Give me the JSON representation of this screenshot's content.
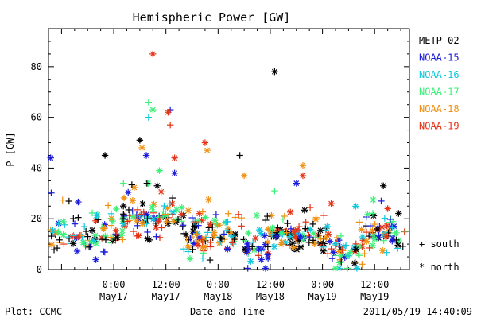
{
  "chart_data": {
    "type": "scatter",
    "title": "Hemispheric Power [GW]",
    "ylabel": "P [GW]",
    "xlabel": "Date and Time",
    "ylim": [
      0,
      95
    ],
    "xlim_hours": [
      -15,
      68
    ],
    "x_ticks": [
      {
        "hours": 0,
        "time": "0:00",
        "date": "May17"
      },
      {
        "hours": 12,
        "time": "12:00",
        "date": "May17"
      },
      {
        "hours": 24,
        "time": "0:00",
        "date": "May18"
      },
      {
        "hours": 36,
        "time": "12:00",
        "date": "May18"
      },
      {
        "hours": 48,
        "time": "0:00",
        "date": "May19"
      },
      {
        "hours": 60,
        "time": "12:00",
        "date": "May19"
      }
    ],
    "y_ticks": [
      0,
      20,
      40,
      60,
      80
    ],
    "grid": false,
    "legend_position": "right",
    "series": [
      {
        "name": "METP-02",
        "color": "#000000"
      },
      {
        "name": "NOAA-15",
        "color": "#1a1adc"
      },
      {
        "name": "NOAA-16",
        "color": "#10c8dc"
      },
      {
        "name": "NOAA-17",
        "color": "#3cf078"
      },
      {
        "name": "NOAA-18",
        "color": "#f09010"
      },
      {
        "name": "NOAA-19",
        "color": "#e63214"
      }
    ],
    "marker_legend": [
      {
        "marker": "+",
        "label": "south"
      },
      {
        "marker": "*",
        "label": "north"
      }
    ],
    "notable_points": [
      {
        "series": "NOAA-19",
        "hours": 9,
        "value": 85,
        "marker": "*"
      },
      {
        "series": "METP-02",
        "hours": 37,
        "value": 78,
        "marker": "*"
      },
      {
        "series": "NOAA-17",
        "hours": 8,
        "value": 66,
        "marker": "+"
      },
      {
        "series": "NOAA-16",
        "hours": 8,
        "value": 60,
        "marker": "+"
      },
      {
        "series": "NOAA-17",
        "hours": 9,
        "value": 63,
        "marker": "*"
      },
      {
        "series": "NOAA-15",
        "hours": 13,
        "value": 63,
        "marker": "+"
      },
      {
        "series": "NOAA-19",
        "hours": 12.5,
        "value": 62,
        "marker": "*"
      },
      {
        "series": "NOAA-19",
        "hours": 13,
        "value": 57,
        "marker": "+"
      },
      {
        "series": "METP-02",
        "hours": 6,
        "value": 51,
        "marker": "*"
      },
      {
        "series": "NOAA-19",
        "hours": 21,
        "value": 50,
        "marker": "*"
      },
      {
        "series": "NOAA-18",
        "hours": 21.5,
        "value": 47,
        "marker": "*"
      },
      {
        "series": "METP-02",
        "hours": 29,
        "value": 45,
        "marker": "+"
      },
      {
        "series": "METP-02",
        "hours": -2,
        "value": 45,
        "marker": "*"
      },
      {
        "series": "NOAA-15",
        "hours": -14.5,
        "value": 44,
        "marker": "*"
      },
      {
        "series": "NOAA-19",
        "hours": 14,
        "value": 44,
        "marker": "*"
      },
      {
        "series": "NOAA-18",
        "hours": 6.5,
        "value": 48,
        "marker": "*"
      },
      {
        "series": "NOAA-15",
        "hours": 7.5,
        "value": 45,
        "marker": "*"
      },
      {
        "series": "METP-02",
        "hours": 10,
        "value": 33,
        "marker": "*"
      },
      {
        "series": "NOAA-18",
        "hours": 43.5,
        "value": 41,
        "marker": "*"
      },
      {
        "series": "NOAA-19",
        "hours": 43.5,
        "value": 37,
        "marker": "*"
      },
      {
        "series": "NOAA-15",
        "hours": 14,
        "value": 38,
        "marker": "*"
      },
      {
        "series": "NOAA-17",
        "hours": 10.5,
        "value": 39,
        "marker": "*"
      },
      {
        "series": "METP-02",
        "hours": 62,
        "value": 33,
        "marker": "*"
      },
      {
        "series": "NOAA-19",
        "hours": 50,
        "value": 26,
        "marker": "*"
      },
      {
        "series": "NOAA-15",
        "hours": 61.5,
        "value": 27,
        "marker": "+"
      },
      {
        "series": "NOAA-18",
        "hours": 30,
        "value": 37,
        "marker": "*"
      },
      {
        "series": "NOAA-15",
        "hours": 42,
        "value": 34,
        "marker": "*"
      },
      {
        "series": "NOAA-17",
        "hours": 37,
        "value": 31,
        "marker": "+"
      },
      {
        "series": "NOAA-19",
        "hours": 63,
        "value": 24,
        "marker": "*"
      }
    ],
    "footer_left": "Plot: CCMC",
    "footer_right": "2011/05/19 14:40:09"
  }
}
